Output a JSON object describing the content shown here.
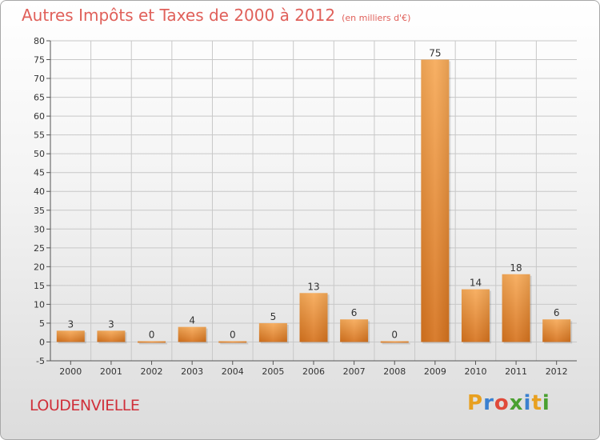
{
  "title": "Autres Impôts et Taxes de 2000 à 2012",
  "subtitle": "(en milliers d'€)",
  "commune": "LOUDENVIELLE",
  "logo": {
    "letters": [
      "P",
      "r",
      "o",
      "x",
      "i",
      "t",
      "i"
    ],
    "colors": [
      "#e8a020",
      "#3a80d0",
      "#e04a3a",
      "#4aa030",
      "#3a80d0",
      "#e8a020",
      "#4aa030"
    ]
  },
  "colors": {
    "bar_light": "#f7aa58",
    "bar_dark": "#d6731e",
    "grid": "#c8c8c8"
  },
  "chart_data": {
    "type": "bar",
    "title": "Autres Impôts et Taxes de 2000 à 2012",
    "categories": [
      "2000",
      "2001",
      "2002",
      "2003",
      "2004",
      "2005",
      "2006",
      "2007",
      "2008",
      "2009",
      "2010",
      "2011",
      "2012"
    ],
    "values": [
      3,
      3,
      0,
      4,
      0,
      5,
      13,
      6,
      0,
      75,
      14,
      18,
      6
    ],
    "value_labels": [
      "3",
      "3",
      "0",
      "4",
      "0",
      "5",
      "13",
      "6",
      "0",
      "75",
      "14",
      "18",
      "6"
    ],
    "ylim": [
      -5,
      80
    ],
    "yticks": [
      -5,
      0,
      5,
      10,
      15,
      20,
      25,
      30,
      35,
      40,
      45,
      50,
      55,
      60,
      65,
      70,
      75,
      80
    ],
    "ytick_labels": [
      "-5",
      "0",
      "5",
      "10",
      "15",
      "20",
      "25",
      "30",
      "35",
      "40",
      "45",
      "50",
      "55",
      "60",
      "65",
      "70",
      "75",
      "80"
    ],
    "grid": true
  }
}
